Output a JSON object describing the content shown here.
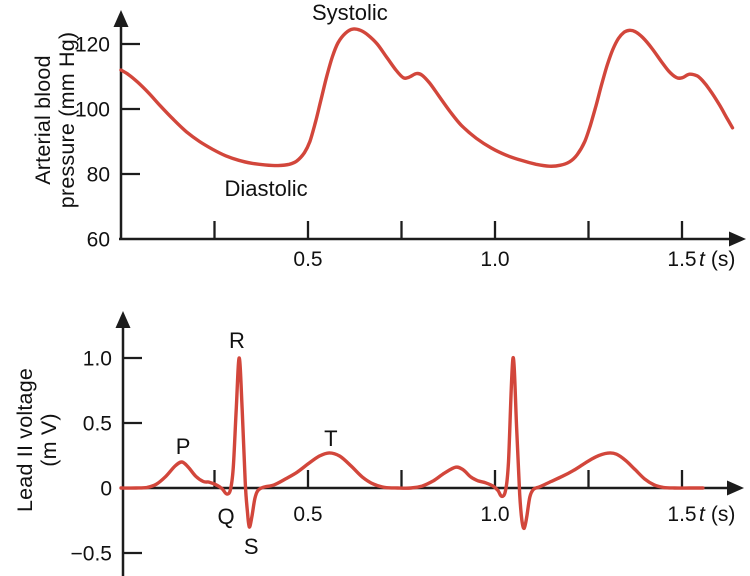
{
  "figure": {
    "background": "#ffffff",
    "curve_color": "#d2463b",
    "axis_color": "#1c1c1c",
    "text_color": "#111111"
  },
  "chart_data": [
    {
      "id": "blood-pressure",
      "type": "line",
      "ylabel_lines": [
        "Arterial blood",
        "pressure (mm Hg)"
      ],
      "xlabel": {
        "variable": "t",
        "unit": "(s)"
      },
      "xlim": [
        0,
        1.66
      ],
      "ylim": [
        60,
        130
      ],
      "grid": false,
      "x_ticks": [
        {
          "t": 0.25,
          "label": ""
        },
        {
          "t": 0.5,
          "label": "0.5"
        },
        {
          "t": 0.75,
          "label": ""
        },
        {
          "t": 1.0,
          "label": "1.0"
        },
        {
          "t": 1.25,
          "label": ""
        },
        {
          "t": 1.5,
          "label": "1.5"
        }
      ],
      "y_ticks": [
        {
          "v": 60,
          "label": "60",
          "tick": false
        },
        {
          "v": 80,
          "label": "80"
        },
        {
          "v": 100,
          "label": "100"
        },
        {
          "v": 120,
          "label": "120"
        }
      ],
      "annotations": [
        {
          "name": "systolic",
          "text": "Systolic",
          "t": 0.612,
          "value": 127.4
        },
        {
          "name": "diastolic",
          "text": "Diastolic",
          "t": 0.388,
          "value": 73.2
        }
      ],
      "series": [
        {
          "name": "arterial-pressure",
          "points": [
            [
              0,
              112
            ],
            [
              0.02,
              110.6
            ],
            [
              0.045,
              108.2
            ],
            [
              0.075,
              104.8
            ],
            [
              0.105,
              101
            ],
            [
              0.14,
              96.8
            ],
            [
              0.175,
              93
            ],
            [
              0.21,
              90
            ],
            [
              0.245,
              87.6
            ],
            [
              0.28,
              85.6
            ],
            [
              0.315,
              84.2
            ],
            [
              0.35,
              83.3
            ],
            [
              0.385,
              82.8
            ],
            [
              0.42,
              82.6
            ],
            [
              0.45,
              83
            ],
            [
              0.47,
              84
            ],
            [
              0.49,
              86.5
            ],
            [
              0.505,
              90
            ],
            [
              0.52,
              96
            ],
            [
              0.535,
              103
            ],
            [
              0.55,
              110
            ],
            [
              0.565,
              116
            ],
            [
              0.58,
              120.3
            ],
            [
              0.6,
              123.3
            ],
            [
              0.62,
              124.6
            ],
            [
              0.64,
              124.2
            ],
            [
              0.66,
              122.8
            ],
            [
              0.685,
              120
            ],
            [
              0.71,
              116
            ],
            [
              0.735,
              112
            ],
            [
              0.755,
              109.6
            ],
            [
              0.77,
              109.8
            ],
            [
              0.79,
              110.9
            ],
            [
              0.805,
              110.4
            ],
            [
              0.825,
              108
            ],
            [
              0.85,
              104
            ],
            [
              0.88,
              99.2
            ],
            [
              0.91,
              95
            ],
            [
              0.95,
              91
            ],
            [
              0.99,
              88
            ],
            [
              1.03,
              85.8
            ],
            [
              1.07,
              84.2
            ],
            [
              1.11,
              83
            ],
            [
              1.145,
              82.4
            ],
            [
              1.175,
              82.7
            ],
            [
              1.2,
              83.8
            ],
            [
              1.22,
              86
            ],
            [
              1.24,
              90
            ],
            [
              1.255,
              95
            ],
            [
              1.27,
              101
            ],
            [
              1.285,
              107.5
            ],
            [
              1.3,
              113.5
            ],
            [
              1.315,
              118.3
            ],
            [
              1.33,
              121.7
            ],
            [
              1.345,
              123.6
            ],
            [
              1.36,
              124.2
            ],
            [
              1.375,
              123.8
            ],
            [
              1.395,
              122
            ],
            [
              1.42,
              118.6
            ],
            [
              1.445,
              114.6
            ],
            [
              1.465,
              111.6
            ],
            [
              1.485,
              109.7
            ],
            [
              1.5,
              109.6
            ],
            [
              1.52,
              110.7
            ],
            [
              1.54,
              110.2
            ],
            [
              1.555,
              108.7
            ],
            [
              1.575,
              105.8
            ],
            [
              1.6,
              101.3
            ],
            [
              1.62,
              97.2
            ],
            [
              1.635,
              94.2
            ]
          ]
        }
      ]
    },
    {
      "id": "ecg",
      "type": "line",
      "ylabel_lines": [
        "Lead II voltage",
        "(m V)"
      ],
      "xlabel": {
        "variable": "t",
        "unit": "(s)"
      },
      "xlim": [
        0,
        1.66
      ],
      "ylim": [
        -0.6,
        1.3
      ],
      "grid": false,
      "x_ticks": [
        {
          "t": 0.25,
          "label": ""
        },
        {
          "t": 0.5,
          "label": "0.5"
        },
        {
          "t": 0.75,
          "label": ""
        },
        {
          "t": 1.0,
          "label": "1.0"
        },
        {
          "t": 1.25,
          "label": ""
        },
        {
          "t": 1.5,
          "label": "1.5"
        }
      ],
      "y_ticks": [
        {
          "v": -0.5,
          "label": "−0.5"
        },
        {
          "v": 0,
          "label": "0"
        },
        {
          "v": 0.5,
          "label": "0.5"
        },
        {
          "v": 1.0,
          "label": "1.0"
        }
      ],
      "annotations": [
        {
          "name": "p-wave",
          "text": "P",
          "t": 0.166,
          "value": 0.262
        },
        {
          "name": "q-wave",
          "text": "Q",
          "t": 0.281,
          "value": -0.277
        },
        {
          "name": "r-wave",
          "text": "R",
          "t": 0.31,
          "value": 1.077
        },
        {
          "name": "s-wave",
          "text": "S",
          "t": 0.348,
          "value": -0.508
        },
        {
          "name": "t-wave",
          "text": "T",
          "t": 0.561,
          "value": 0.323
        }
      ],
      "series": [
        {
          "name": "lead-ii-voltage",
          "points": [
            [
              0,
              0
            ],
            [
              0.04,
              0
            ],
            [
              0.07,
              0.005
            ],
            [
              0.095,
              0.03
            ],
            [
              0.12,
              0.09
            ],
            [
              0.145,
              0.17
            ],
            [
              0.163,
              0.2
            ],
            [
              0.18,
              0.16
            ],
            [
              0.2,
              0.09
            ],
            [
              0.22,
              0.05
            ],
            [
              0.235,
              0.045
            ],
            [
              0.25,
              0.03
            ],
            [
              0.263,
              0.01
            ],
            [
              0.272,
              -0.01
            ],
            [
              0.282,
              -0.045
            ],
            [
              0.292,
              -0.02
            ],
            [
              0.3,
              0.15
            ],
            [
              0.308,
              0.6
            ],
            [
              0.316,
              1.0
            ],
            [
              0.324,
              0.6
            ],
            [
              0.332,
              0.05
            ],
            [
              0.338,
              -0.18
            ],
            [
              0.343,
              -0.3
            ],
            [
              0.35,
              -0.22
            ],
            [
              0.358,
              -0.08
            ],
            [
              0.366,
              -0.02
            ],
            [
              0.38,
              0.005
            ],
            [
              0.41,
              0.025
            ],
            [
              0.44,
              0.07
            ],
            [
              0.47,
              0.12
            ],
            [
              0.5,
              0.185
            ],
            [
              0.53,
              0.245
            ],
            [
              0.557,
              0.27
            ],
            [
              0.585,
              0.245
            ],
            [
              0.615,
              0.17
            ],
            [
              0.645,
              0.085
            ],
            [
              0.675,
              0.03
            ],
            [
              0.705,
              0.005
            ],
            [
              0.74,
              0
            ],
            [
              0.775,
              0
            ],
            [
              0.805,
              0.015
            ],
            [
              0.835,
              0.055
            ],
            [
              0.865,
              0.115
            ],
            [
              0.895,
              0.16
            ],
            [
              0.915,
              0.14
            ],
            [
              0.935,
              0.085
            ],
            [
              0.955,
              0.055
            ],
            [
              0.975,
              0.04
            ],
            [
              0.995,
              0.015
            ],
            [
              1.008,
              -0.02
            ],
            [
              1.018,
              -0.065
            ],
            [
              1.028,
              -0.02
            ],
            [
              1.036,
              0.2
            ],
            [
              1.048,
              1.0
            ],
            [
              1.058,
              0.45
            ],
            [
              1.066,
              -0.05
            ],
            [
              1.072,
              -0.25
            ],
            [
              1.078,
              -0.31
            ],
            [
              1.085,
              -0.22
            ],
            [
              1.093,
              -0.07
            ],
            [
              1.103,
              -0.01
            ],
            [
              1.12,
              0.01
            ],
            [
              1.15,
              0.05
            ],
            [
              1.18,
              0.09
            ],
            [
              1.21,
              0.135
            ],
            [
              1.24,
              0.19
            ],
            [
              1.27,
              0.24
            ],
            [
              1.3,
              0.268
            ],
            [
              1.325,
              0.26
            ],
            [
              1.35,
              0.21
            ],
            [
              1.375,
              0.14
            ],
            [
              1.4,
              0.07
            ],
            [
              1.425,
              0.025
            ],
            [
              1.45,
              0.005
            ],
            [
              1.48,
              0
            ],
            [
              1.52,
              0
            ],
            [
              1.556,
              0
            ]
          ]
        }
      ]
    }
  ]
}
